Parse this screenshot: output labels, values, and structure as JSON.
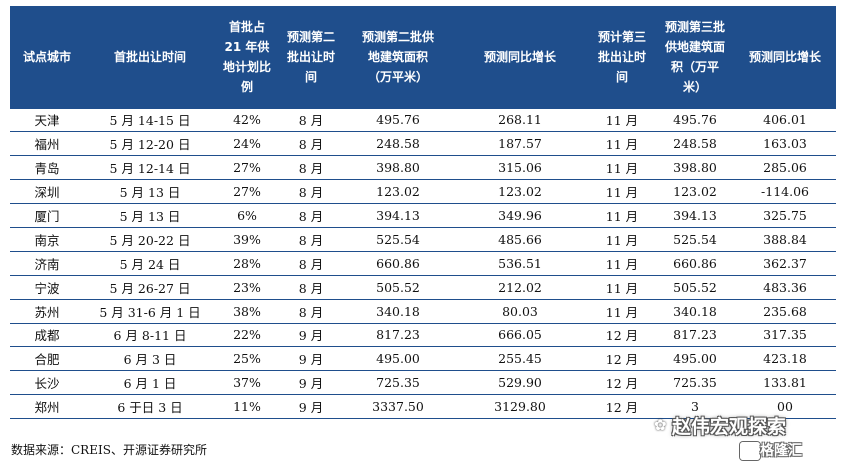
{
  "table": {
    "headers": [
      "试点城市",
      "首批出让时间",
      "首批占\n21 年供\n地计划比\n例",
      "预测第二\n批出让时\n间",
      "预测第二批供\n地建筑面积\n（万平米）",
      "预测同比增长",
      "预计第三\n批出让时\n间",
      "预测第三批\n供地建筑面\n积（万平\n米）",
      "预测同比增长"
    ],
    "rows": [
      [
        "天津",
        "5 月 14-15 日",
        "42%",
        "8 月",
        "495.76",
        "268.11",
        "11 月",
        "495.76",
        "406.01"
      ],
      [
        "福州",
        "5 月 12-20 日",
        "24%",
        "8 月",
        "248.58",
        "187.57",
        "11 月",
        "248.58",
        "163.03"
      ],
      [
        "青岛",
        "5 月 12-14 日",
        "27%",
        "8 月",
        "398.80",
        "315.06",
        "11 月",
        "398.80",
        "285.06"
      ],
      [
        "深圳",
        "5 月 13 日",
        "27%",
        "8 月",
        "123.02",
        "123.02",
        "11 月",
        "123.02",
        "-114.06"
      ],
      [
        "厦门",
        "5 月 13 日",
        "6%",
        "8 月",
        "394.13",
        "349.96",
        "11 月",
        "394.13",
        "325.75"
      ],
      [
        "南京",
        "5 月 20-22 日",
        "39%",
        "8 月",
        "525.54",
        "485.66",
        "11 月",
        "525.54",
        "388.84"
      ],
      [
        "济南",
        "5 月 24 日",
        "28%",
        "8 月",
        "660.86",
        "536.51",
        "11 月",
        "660.86",
        "362.37"
      ],
      [
        "宁波",
        "5 月 26-27 日",
        "23%",
        "8 月",
        "505.52",
        "212.02",
        "11 月",
        "505.52",
        "483.36"
      ],
      [
        "苏州",
        "5 月 31-6 月 1 日",
        "38%",
        "8 月",
        "340.18",
        "80.03",
        "11 月",
        "340.18",
        "235.68"
      ],
      [
        "成都",
        "6 月 8-11 日",
        "22%",
        "9 月",
        "817.23",
        "666.05",
        "12 月",
        "817.23",
        "317.35"
      ],
      [
        "合肥",
        "6 月 3 日",
        "25%",
        "9 月",
        "495.00",
        "255.45",
        "12 月",
        "495.00",
        "423.18"
      ],
      [
        "长沙",
        "6 月 1 日",
        "37%",
        "9 月",
        "725.35",
        "529.90",
        "12 月",
        "725.35",
        "133.81"
      ],
      [
        "郑州",
        "6 于日 3 日",
        "11%",
        "9 月",
        "3337.50",
        "3129.80",
        "12 月",
        "3",
        "00"
      ]
    ]
  },
  "source": "数据来源：CREIS、开源证券研究所",
  "watermark": {
    "line1": "赵伟宏观探索",
    "line2": "格隆汇"
  },
  "colors": {
    "header_bg": "#1f4e8c",
    "header_text": "#ffffff",
    "rule": "#1f4e8c"
  }
}
